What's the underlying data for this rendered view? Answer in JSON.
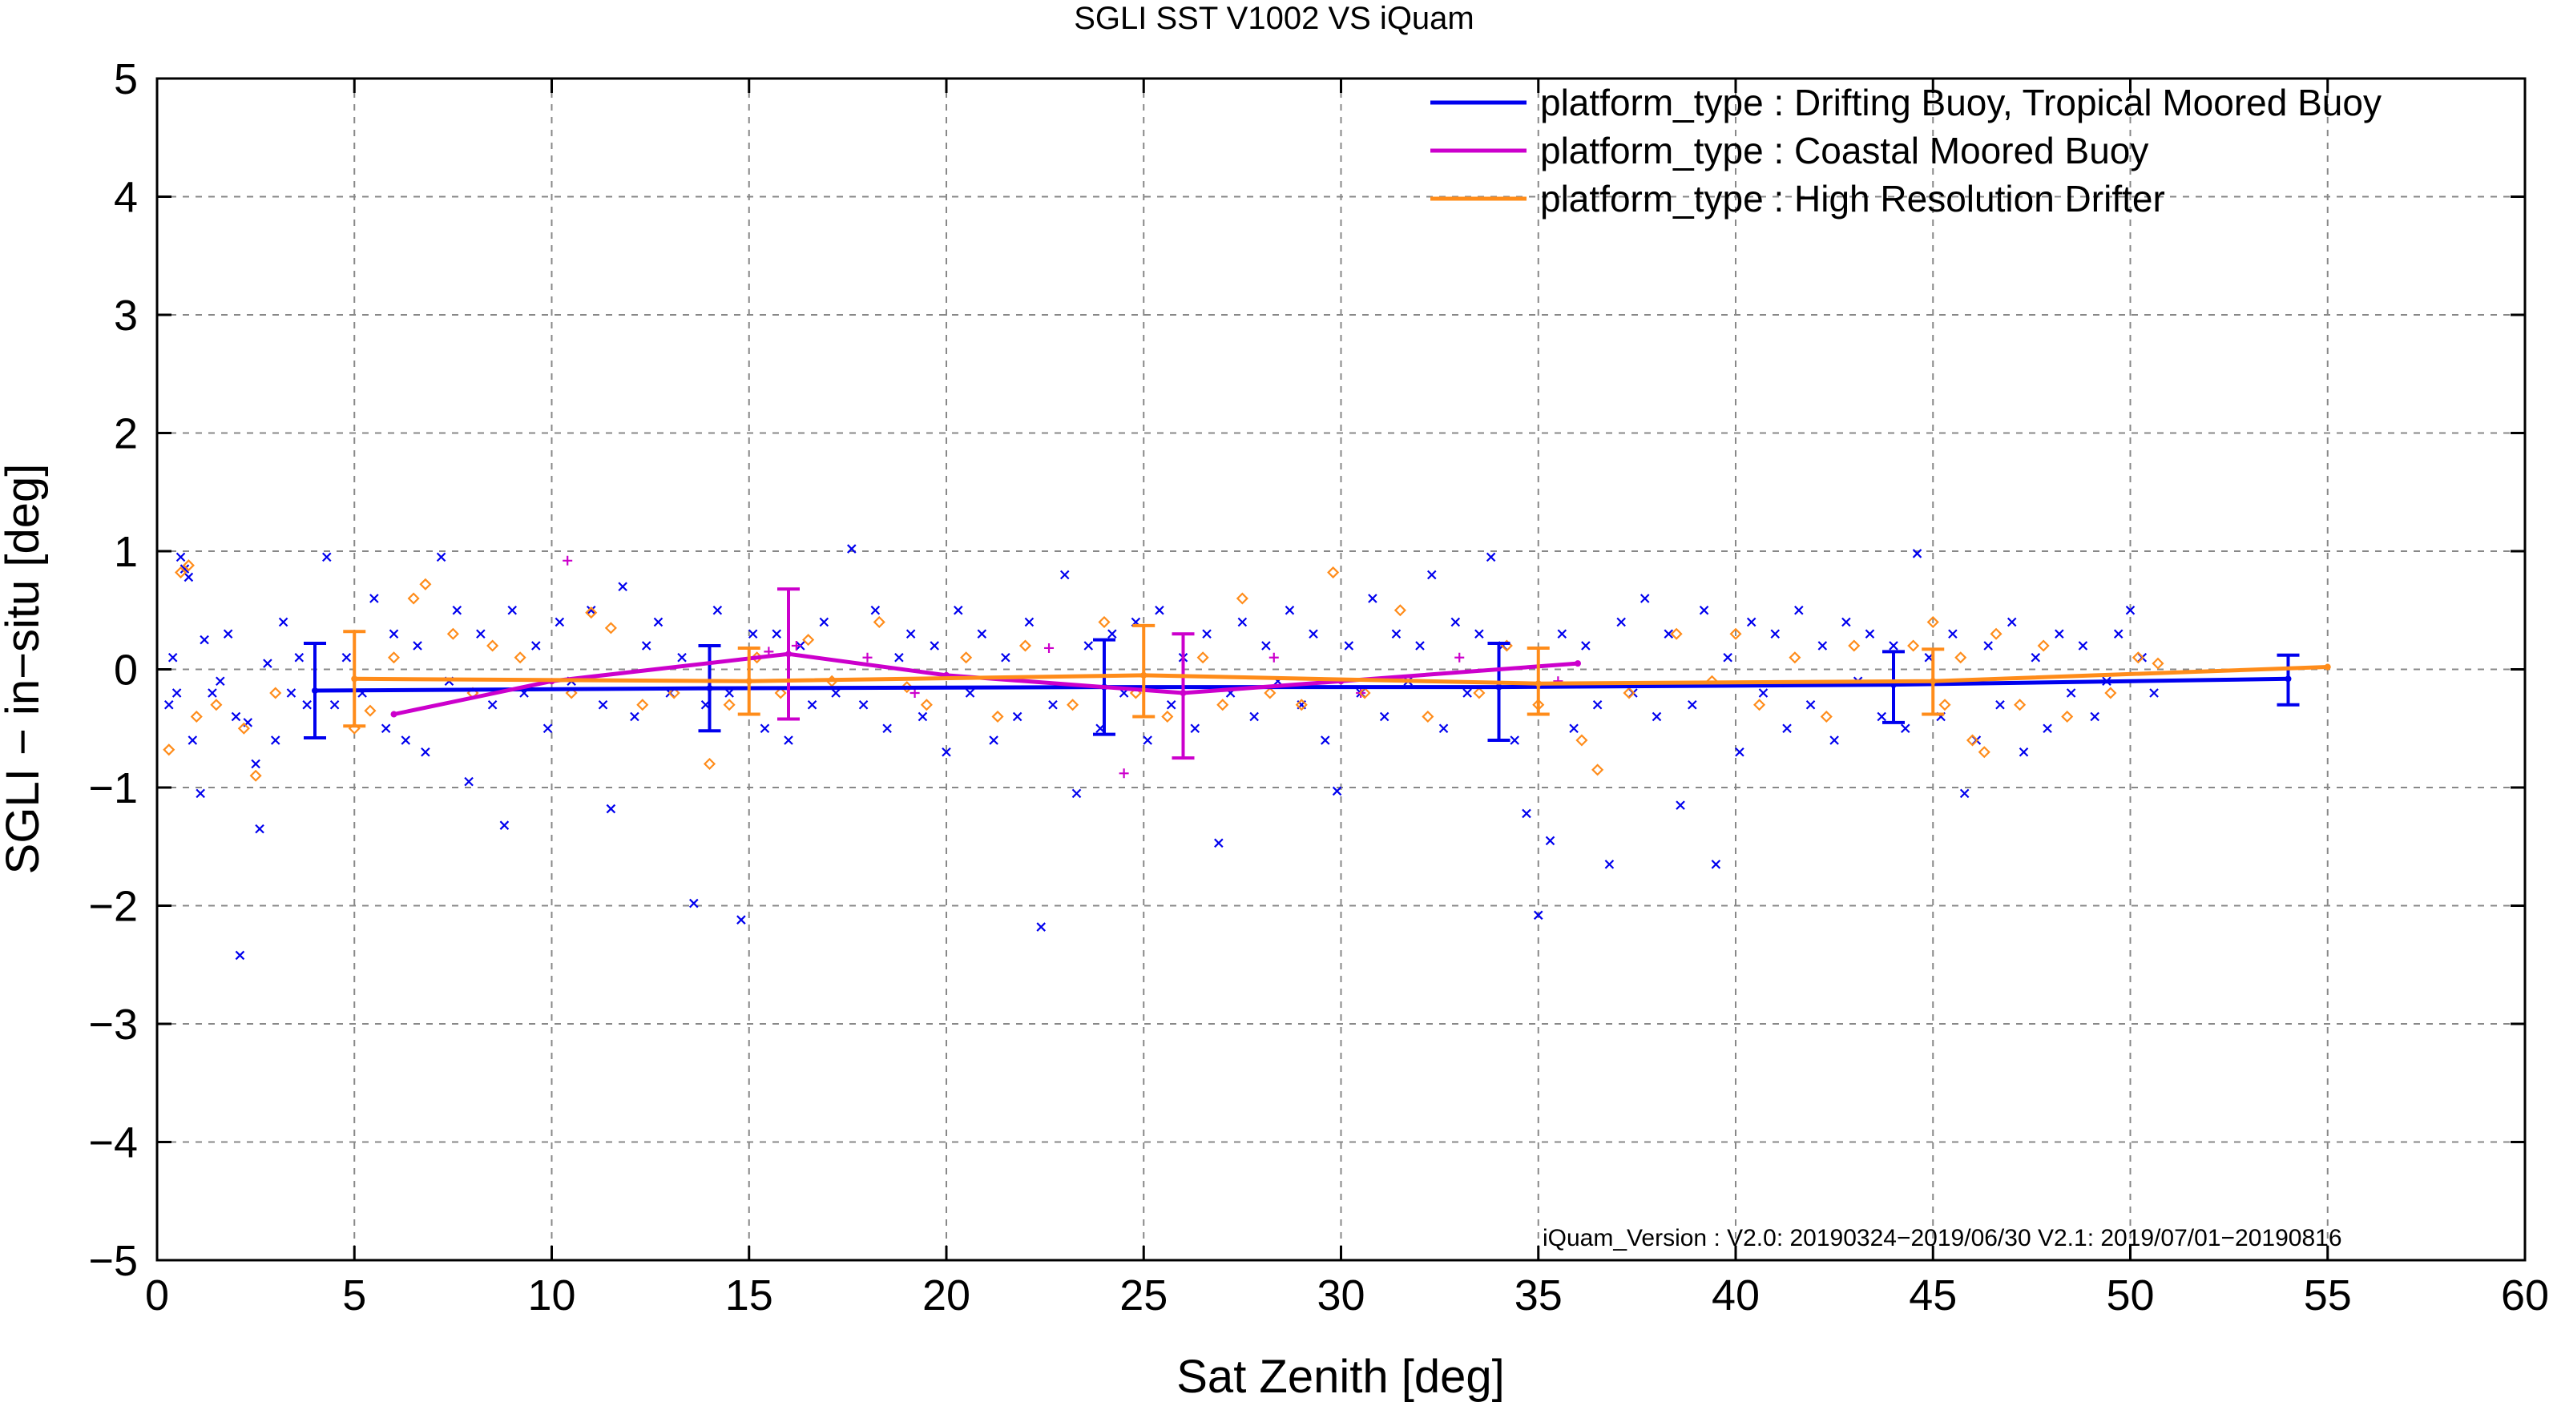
{
  "chart_data": {
    "type": "scatter",
    "title": "SGLI SST V1002 VS iQuam",
    "xlabel": "Sat Zenith [deg]",
    "ylabel": "SGLI − in−situ [deg]",
    "xlim": [
      0,
      60
    ],
    "ylim": [
      -5,
      5
    ],
    "xticks": [
      0,
      5,
      10,
      15,
      20,
      25,
      30,
      35,
      40,
      45,
      50,
      55,
      60
    ],
    "yticks": [
      -5,
      -4,
      -3,
      -2,
      -1,
      0,
      1,
      2,
      3,
      4,
      5
    ],
    "ytick_labels": [
      "−5",
      "−4",
      "−3",
      "−2",
      "−1",
      "0",
      "1",
      "2",
      "3",
      "4",
      "5"
    ],
    "grid": true,
    "legend_position": "top-right",
    "annotation": "iQuam_Version :  V2.0: 20190324−2019/06/30 V2.1: 2019/07/01−20190816",
    "series": [
      {
        "name": "platform_type : Drifting Buoy, Tropical Moored Buoy",
        "color": "#0000ee",
        "marker": "x",
        "line": {
          "x": [
            4,
            14,
            24,
            34,
            44,
            54
          ],
          "y": [
            -0.18,
            -0.16,
            -0.15,
            -0.15,
            -0.13,
            -0.08
          ]
        },
        "errorbars": [
          {
            "x": 4,
            "y": -0.18,
            "lo": -0.58,
            "hi": 0.22
          },
          {
            "x": 14,
            "y": -0.16,
            "lo": -0.52,
            "hi": 0.2
          },
          {
            "x": 24,
            "y": -0.15,
            "lo": -0.55,
            "hi": 0.25
          },
          {
            "x": 34,
            "y": -0.15,
            "lo": -0.6,
            "hi": 0.22
          },
          {
            "x": 44,
            "y": -0.13,
            "lo": -0.45,
            "hi": 0.15
          },
          {
            "x": 54,
            "y": -0.08,
            "lo": -0.3,
            "hi": 0.12
          }
        ],
        "points": [
          [
            0.3,
            -0.3
          ],
          [
            0.4,
            0.1
          ],
          [
            0.5,
            -0.2
          ],
          [
            0.6,
            0.95
          ],
          [
            0.7,
            0.85
          ],
          [
            0.8,
            0.78
          ],
          [
            0.9,
            -0.6
          ],
          [
            1.1,
            -1.05
          ],
          [
            1.2,
            0.25
          ],
          [
            1.4,
            -0.2
          ],
          [
            1.6,
            -0.1
          ],
          [
            1.8,
            0.3
          ],
          [
            2.0,
            -0.4
          ],
          [
            2.1,
            -2.42
          ],
          [
            2.3,
            -0.45
          ],
          [
            2.5,
            -0.8
          ],
          [
            2.6,
            -1.35
          ],
          [
            2.8,
            0.05
          ],
          [
            3.0,
            -0.6
          ],
          [
            3.2,
            0.4
          ],
          [
            3.4,
            -0.2
          ],
          [
            3.6,
            0.1
          ],
          [
            3.8,
            -0.3
          ],
          [
            4.3,
            0.95
          ],
          [
            4.5,
            -0.3
          ],
          [
            4.8,
            0.1
          ],
          [
            5.2,
            -0.2
          ],
          [
            5.5,
            0.6
          ],
          [
            5.8,
            -0.5
          ],
          [
            6.0,
            0.3
          ],
          [
            6.3,
            -0.6
          ],
          [
            6.6,
            0.2
          ],
          [
            6.8,
            -0.7
          ],
          [
            7.2,
            0.95
          ],
          [
            7.4,
            -0.1
          ],
          [
            7.6,
            0.5
          ],
          [
            7.9,
            -0.95
          ],
          [
            8.2,
            0.3
          ],
          [
            8.5,
            -0.3
          ],
          [
            8.8,
            -1.32
          ],
          [
            9.0,
            0.5
          ],
          [
            9.3,
            -0.2
          ],
          [
            9.6,
            0.2
          ],
          [
            9.9,
            -0.5
          ],
          [
            10.2,
            0.4
          ],
          [
            10.5,
            -0.1
          ],
          [
            11.0,
            0.5
          ],
          [
            11.3,
            -0.3
          ],
          [
            11.5,
            -1.18
          ],
          [
            11.8,
            0.7
          ],
          [
            12.1,
            -0.4
          ],
          [
            12.4,
            0.2
          ],
          [
            12.7,
            0.4
          ],
          [
            13.0,
            -0.2
          ],
          [
            13.3,
            0.1
          ],
          [
            13.6,
            -1.98
          ],
          [
            13.9,
            -0.3
          ],
          [
            14.2,
            0.5
          ],
          [
            14.5,
            -0.2
          ],
          [
            14.8,
            -2.12
          ],
          [
            15.1,
            0.3
          ],
          [
            15.4,
            -0.5
          ],
          [
            15.7,
            0.3
          ],
          [
            16.0,
            -0.6
          ],
          [
            16.3,
            0.2
          ],
          [
            16.6,
            -0.3
          ],
          [
            16.9,
            0.4
          ],
          [
            17.2,
            -0.2
          ],
          [
            17.6,
            1.02
          ],
          [
            17.9,
            -0.3
          ],
          [
            18.2,
            0.5
          ],
          [
            18.5,
            -0.5
          ],
          [
            18.8,
            0.1
          ],
          [
            19.1,
            0.3
          ],
          [
            19.4,
            -0.4
          ],
          [
            19.7,
            0.2
          ],
          [
            20.0,
            -0.7
          ],
          [
            20.3,
            0.5
          ],
          [
            20.6,
            -0.2
          ],
          [
            20.9,
            0.3
          ],
          [
            21.2,
            -0.6
          ],
          [
            21.5,
            0.1
          ],
          [
            21.8,
            -0.4
          ],
          [
            22.1,
            0.4
          ],
          [
            22.4,
            -2.18
          ],
          [
            22.7,
            -0.3
          ],
          [
            23.0,
            0.8
          ],
          [
            23.3,
            -1.05
          ],
          [
            23.6,
            0.2
          ],
          [
            23.9,
            -0.5
          ],
          [
            24.2,
            0.3
          ],
          [
            24.5,
            -0.2
          ],
          [
            24.8,
            0.4
          ],
          [
            25.1,
            -0.6
          ],
          [
            25.4,
            0.5
          ],
          [
            25.7,
            -0.3
          ],
          [
            26.0,
            0.1
          ],
          [
            26.3,
            -0.5
          ],
          [
            26.6,
            0.3
          ],
          [
            26.9,
            -1.47
          ],
          [
            27.2,
            -0.2
          ],
          [
            27.5,
            0.4
          ],
          [
            27.8,
            -0.4
          ],
          [
            28.1,
            0.2
          ],
          [
            28.4,
            -0.1
          ],
          [
            28.7,
            0.5
          ],
          [
            29.0,
            -0.3
          ],
          [
            29.3,
            0.3
          ],
          [
            29.6,
            -0.6
          ],
          [
            29.9,
            -1.03
          ],
          [
            30.2,
            0.2
          ],
          [
            30.5,
            -0.2
          ],
          [
            30.8,
            0.6
          ],
          [
            31.1,
            -0.4
          ],
          [
            31.4,
            0.3
          ],
          [
            31.7,
            -0.1
          ],
          [
            32.0,
            0.2
          ],
          [
            32.3,
            0.8
          ],
          [
            32.6,
            -0.5
          ],
          [
            32.9,
            0.4
          ],
          [
            33.2,
            -0.2
          ],
          [
            33.5,
            0.3
          ],
          [
            33.8,
            0.95
          ],
          [
            34.1,
            0.2
          ],
          [
            34.4,
            -0.6
          ],
          [
            34.7,
            -1.22
          ],
          [
            35.0,
            -2.08
          ],
          [
            35.3,
            -1.45
          ],
          [
            35.6,
            0.3
          ],
          [
            35.9,
            -0.5
          ],
          [
            36.2,
            0.2
          ],
          [
            36.5,
            -0.3
          ],
          [
            36.8,
            -1.65
          ],
          [
            37.1,
            0.4
          ],
          [
            37.4,
            -0.2
          ],
          [
            37.7,
            0.6
          ],
          [
            38.0,
            -0.4
          ],
          [
            38.3,
            0.3
          ],
          [
            38.6,
            -1.15
          ],
          [
            38.9,
            -0.3
          ],
          [
            39.2,
            0.5
          ],
          [
            39.5,
            -1.65
          ],
          [
            39.8,
            0.1
          ],
          [
            40.1,
            -0.7
          ],
          [
            40.4,
            0.4
          ],
          [
            40.7,
            -0.2
          ],
          [
            41.0,
            0.3
          ],
          [
            41.3,
            -0.5
          ],
          [
            41.6,
            0.5
          ],
          [
            41.9,
            -0.3
          ],
          [
            42.2,
            0.2
          ],
          [
            42.5,
            -0.6
          ],
          [
            42.8,
            0.4
          ],
          [
            43.1,
            -0.1
          ],
          [
            43.4,
            0.3
          ],
          [
            43.7,
            -0.4
          ],
          [
            44.0,
            0.2
          ],
          [
            44.3,
            -0.5
          ],
          [
            44.6,
            0.98
          ],
          [
            44.9,
            0.1
          ],
          [
            45.2,
            -0.4
          ],
          [
            45.5,
            0.3
          ],
          [
            45.8,
            -1.05
          ],
          [
            46.1,
            -0.6
          ],
          [
            46.4,
            0.2
          ],
          [
            46.7,
            -0.3
          ],
          [
            47.0,
            0.4
          ],
          [
            47.3,
            -0.7
          ],
          [
            47.6,
            0.1
          ],
          [
            47.9,
            -0.5
          ],
          [
            48.2,
            0.3
          ],
          [
            48.5,
            -0.2
          ],
          [
            48.8,
            0.2
          ],
          [
            49.1,
            -0.4
          ],
          [
            49.4,
            -0.1
          ],
          [
            49.7,
            0.3
          ],
          [
            50.0,
            0.5
          ],
          [
            50.3,
            0.1
          ],
          [
            50.6,
            -0.2
          ]
        ]
      },
      {
        "name": "platform_type : Coastal Moored Buoy",
        "color": "#cc00cc",
        "marker": "+",
        "line": {
          "x": [
            6,
            10,
            16,
            20,
            26,
            30,
            36
          ],
          "y": [
            -0.38,
            -0.1,
            0.13,
            -0.05,
            -0.2,
            -0.1,
            0.05
          ]
        },
        "errorbars": [
          {
            "x": 16,
            "y": 0.13,
            "lo": -0.42,
            "hi": 0.68
          },
          {
            "x": 26,
            "y": -0.2,
            "lo": -0.75,
            "hi": 0.3
          }
        ],
        "points": [
          [
            10.4,
            0.92
          ],
          [
            15.5,
            0.15
          ],
          [
            16.2,
            0.2
          ],
          [
            18.0,
            0.1
          ],
          [
            19.2,
            -0.2
          ],
          [
            22.6,
            0.18
          ],
          [
            24.5,
            -0.88
          ],
          [
            26.0,
            -0.2
          ],
          [
            28.3,
            0.1
          ],
          [
            30.5,
            -0.2
          ],
          [
            33.0,
            0.1
          ],
          [
            35.5,
            -0.1
          ]
        ]
      },
      {
        "name": "platform_type : High Resolution Drifter",
        "color": "#ff8c1a",
        "marker": "diamond",
        "line": {
          "x": [
            5,
            15,
            25,
            35,
            45,
            55
          ],
          "y": [
            -0.08,
            -0.1,
            -0.05,
            -0.12,
            -0.1,
            0.02
          ]
        },
        "errorbars": [
          {
            "x": 5,
            "y": -0.08,
            "lo": -0.48,
            "hi": 0.32
          },
          {
            "x": 15,
            "y": -0.1,
            "lo": -0.38,
            "hi": 0.18
          },
          {
            "x": 25,
            "y": -0.05,
            "lo": -0.4,
            "hi": 0.37
          },
          {
            "x": 35,
            "y": -0.12,
            "lo": -0.38,
            "hi": 0.18
          },
          {
            "x": 45,
            "y": -0.1,
            "lo": -0.38,
            "hi": 0.17
          }
        ],
        "points": [
          [
            0.3,
            -0.68
          ],
          [
            0.6,
            0.82
          ],
          [
            0.8,
            0.88
          ],
          [
            1.0,
            -0.4
          ],
          [
            1.5,
            -0.3
          ],
          [
            2.2,
            -0.5
          ],
          [
            2.5,
            -0.9
          ],
          [
            3.0,
            -0.2
          ],
          [
            5.0,
            -0.5
          ],
          [
            5.4,
            -0.35
          ],
          [
            6.0,
            0.1
          ],
          [
            6.5,
            0.6
          ],
          [
            6.8,
            0.72
          ],
          [
            7.5,
            0.3
          ],
          [
            8.0,
            -0.2
          ],
          [
            8.5,
            0.2
          ],
          [
            9.2,
            0.1
          ],
          [
            10.5,
            -0.2
          ],
          [
            11.0,
            0.48
          ],
          [
            11.5,
            0.35
          ],
          [
            12.3,
            -0.3
          ],
          [
            13.1,
            -0.2
          ],
          [
            14.0,
            -0.8
          ],
          [
            14.5,
            -0.3
          ],
          [
            15.2,
            0.1
          ],
          [
            15.8,
            -0.2
          ],
          [
            16.5,
            0.25
          ],
          [
            17.1,
            -0.1
          ],
          [
            18.3,
            0.4
          ],
          [
            19.0,
            -0.15
          ],
          [
            19.5,
            -0.3
          ],
          [
            20.5,
            0.1
          ],
          [
            21.3,
            -0.4
          ],
          [
            22.0,
            0.2
          ],
          [
            23.2,
            -0.3
          ],
          [
            24.0,
            0.4
          ],
          [
            24.8,
            -0.2
          ],
          [
            25.6,
            -0.4
          ],
          [
            26.5,
            0.1
          ],
          [
            27.0,
            -0.3
          ],
          [
            27.5,
            0.6
          ],
          [
            28.2,
            -0.2
          ],
          [
            29.0,
            -0.3
          ],
          [
            29.8,
            0.82
          ],
          [
            30.6,
            -0.2
          ],
          [
            31.5,
            0.5
          ],
          [
            32.2,
            -0.4
          ],
          [
            33.5,
            -0.2
          ],
          [
            34.2,
            0.2
          ],
          [
            35.0,
            -0.3
          ],
          [
            36.1,
            -0.6
          ],
          [
            36.5,
            -0.85
          ],
          [
            37.3,
            -0.2
          ],
          [
            38.5,
            0.3
          ],
          [
            39.4,
            -0.1
          ],
          [
            40.0,
            0.3
          ],
          [
            40.6,
            -0.3
          ],
          [
            41.5,
            0.1
          ],
          [
            42.3,
            -0.4
          ],
          [
            43.0,
            0.2
          ],
          [
            44.5,
            0.2
          ],
          [
            45.0,
            0.4
          ],
          [
            45.3,
            -0.3
          ],
          [
            45.7,
            0.1
          ],
          [
            46.0,
            -0.6
          ],
          [
            46.3,
            -0.7
          ],
          [
            46.6,
            0.3
          ],
          [
            47.2,
            -0.3
          ],
          [
            47.8,
            0.2
          ],
          [
            48.4,
            -0.4
          ],
          [
            49.5,
            -0.2
          ],
          [
            50.2,
            0.1
          ],
          [
            50.7,
            0.05
          ]
        ]
      }
    ]
  }
}
